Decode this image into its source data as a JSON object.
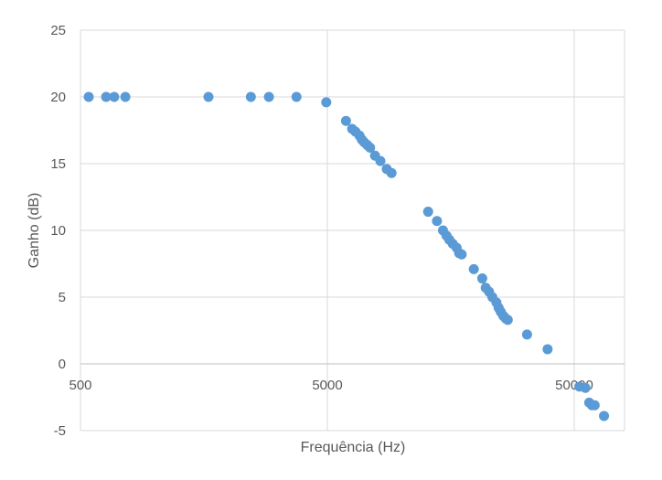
{
  "chart_data": {
    "type": "scatter",
    "xscale": "log",
    "xlabel": "Frequência (Hz)",
    "ylabel": "Ganho (dB)",
    "xlim": [
      500,
      90000
    ],
    "ylim": [
      -5,
      25
    ],
    "x_ticks": [
      500,
      5000,
      50000
    ],
    "x_tick_labels": [
      "500",
      "5000",
      "50000"
    ],
    "y_ticks": [
      -5,
      0,
      5,
      10,
      15,
      20,
      25
    ],
    "y_tick_labels": [
      "-5",
      "0",
      "5",
      "10",
      "15",
      "20",
      "25"
    ],
    "grid": true,
    "marker_color": "#5B9BD5",
    "series": [
      {
        "points": [
          [
            540,
            20.0
          ],
          [
            635,
            20.0
          ],
          [
            685,
            20.0
          ],
          [
            760,
            20.0
          ],
          [
            1650,
            20.0
          ],
          [
            2450,
            20.0
          ],
          [
            2900,
            20.0
          ],
          [
            3750,
            20.0
          ],
          [
            4950,
            19.6
          ],
          [
            5950,
            18.2
          ],
          [
            6300,
            17.6
          ],
          [
            6500,
            17.4
          ],
          [
            6750,
            17.1
          ],
          [
            6900,
            16.8
          ],
          [
            7050,
            16.6
          ],
          [
            7250,
            16.4
          ],
          [
            7450,
            16.2
          ],
          [
            7800,
            15.6
          ],
          [
            8200,
            15.2
          ],
          [
            8700,
            14.6
          ],
          [
            9100,
            14.3
          ],
          [
            12800,
            11.4
          ],
          [
            13900,
            10.7
          ],
          [
            14700,
            10.0
          ],
          [
            15200,
            9.6
          ],
          [
            15600,
            9.3
          ],
          [
            16100,
            9.0
          ],
          [
            16700,
            8.7
          ],
          [
            17100,
            8.3
          ],
          [
            17500,
            8.2
          ],
          [
            19600,
            7.1
          ],
          [
            21200,
            6.4
          ],
          [
            21900,
            5.7
          ],
          [
            22600,
            5.4
          ],
          [
            23300,
            5.0
          ],
          [
            24200,
            4.6
          ],
          [
            24700,
            4.2
          ],
          [
            25200,
            3.9
          ],
          [
            25800,
            3.6
          ],
          [
            26400,
            3.4
          ],
          [
            26900,
            3.3
          ],
          [
            32200,
            2.2
          ],
          [
            39000,
            1.1
          ],
          [
            52500,
            -1.7
          ],
          [
            55500,
            -1.8
          ],
          [
            57500,
            -2.9
          ],
          [
            59000,
            -3.1
          ],
          [
            60500,
            -3.1
          ],
          [
            66000,
            -3.9
          ]
        ]
      }
    ]
  }
}
